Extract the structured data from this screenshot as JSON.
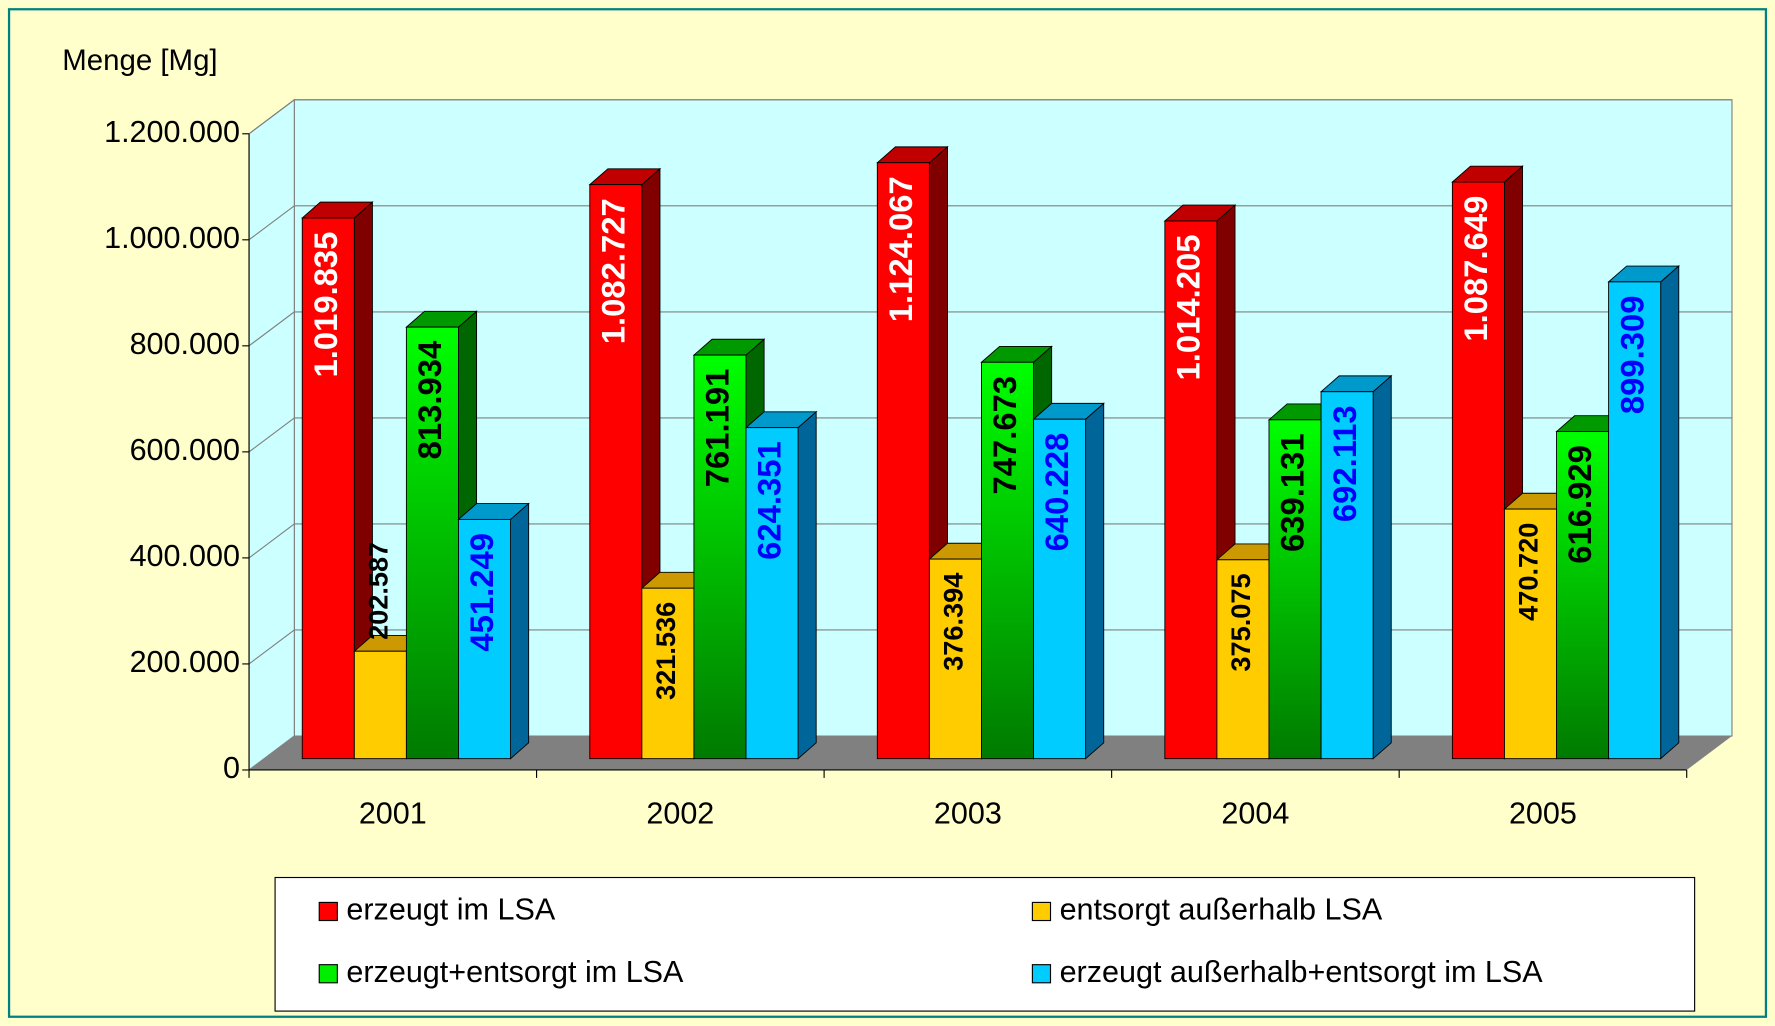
{
  "chart_data": {
    "type": "bar3d",
    "y_axis_label": "Menge [Mg]",
    "categories": [
      "2001",
      "2002",
      "2003",
      "2004",
      "2005"
    ],
    "ylim": [
      0,
      1200000
    ],
    "yticks": [
      0,
      {
        "value": 200000,
        "label": "200.000"
      },
      {
        "value": 400000,
        "label": "400.000"
      },
      {
        "value": 600000,
        "label": "600.000"
      },
      {
        "value": 800000,
        "label": "800.000"
      },
      {
        "value": 1000000,
        "label": "1.000.000"
      },
      {
        "value": 1200000,
        "label": "1.200.000"
      }
    ],
    "grid": true,
    "legend_position": "bottom",
    "series": [
      {
        "name": "erzeugt im LSA",
        "color": "#ff0000",
        "values": [
          1019835,
          1082727,
          1124067,
          1014205,
          1087649
        ],
        "value_labels": [
          "1.019.835",
          "1.082.727",
          "1.124.067",
          "1.014.205",
          "1.087.649"
        ]
      },
      {
        "name": "entsorgt außerhalb LSA",
        "color": "#ffcc00",
        "values": [
          202587,
          321536,
          376394,
          375075,
          470720
        ],
        "value_labels": [
          "202.587",
          "321.536",
          "376.394",
          "375.075",
          "470.720"
        ]
      },
      {
        "name": "erzeugt+entsorgt im LSA",
        "color": "#00ee00",
        "values": [
          813934,
          761191,
          747673,
          639131,
          616929
        ],
        "value_labels": [
          "813.934",
          "761.191",
          "747.673",
          "639.131",
          "616.929"
        ]
      },
      {
        "name": "erzeugt außerhalb+entsorgt im LSA",
        "color": "#00ccff",
        "values": [
          451249,
          624351,
          640228,
          692113,
          899309
        ],
        "value_labels": [
          "451.249",
          "624.351",
          "640.228",
          "692.113",
          "899.309"
        ]
      }
    ]
  }
}
